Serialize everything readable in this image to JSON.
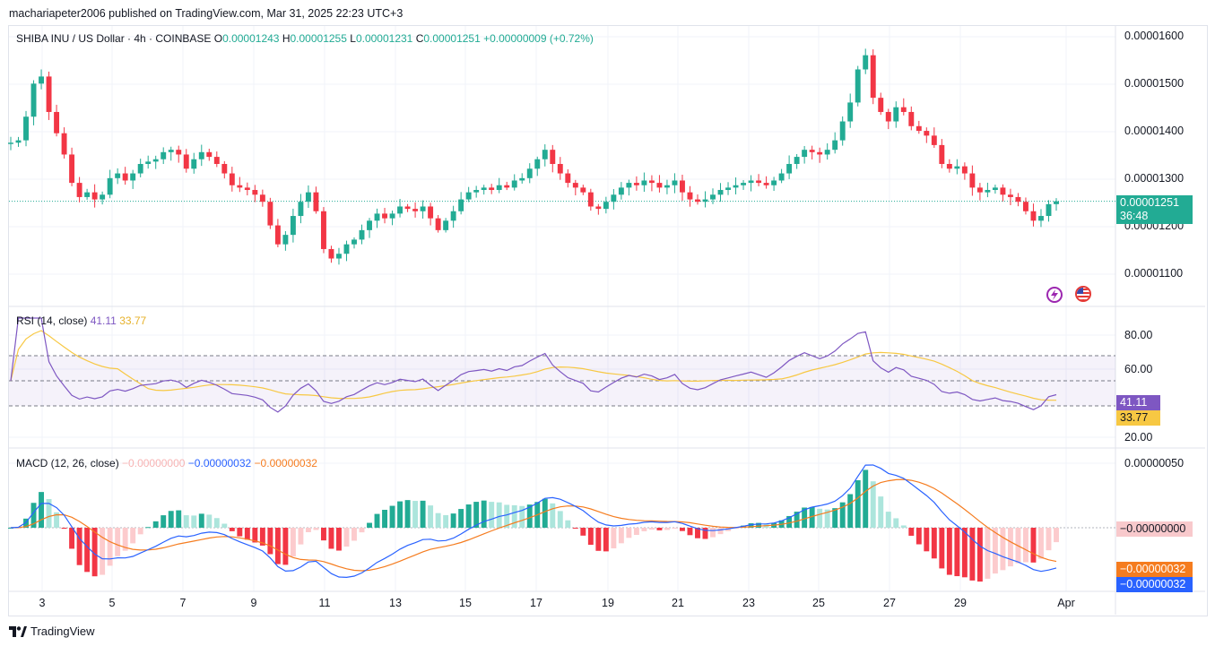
{
  "header": {
    "published": "machariapeter2006 published on TradingView.com, Mar 31, 2025 22:23 UTC+3"
  },
  "main_label": {
    "symbol": "SHIBA INU / US Dollar · 4h · COINBASE",
    "o_label": "O",
    "o": "0.00001243",
    "h_label": "H",
    "h": "0.00001255",
    "l_label": "L",
    "l": "0.00001231",
    "c_label": "C",
    "c": "0.00001251",
    "change": "+0.00000009 (+0.72%)"
  },
  "rsi_label": {
    "name": "RSI (14, close)",
    "rsi": "41.11",
    "ma": "33.77"
  },
  "macd_label": {
    "name": "MACD (12, 26, close)",
    "hist": "−0.00000000",
    "macd": "−0.00000032",
    "signal": "−0.00000032"
  },
  "price_axis": [
    "0.00001600",
    "0.00001500",
    "0.00001400",
    "0.00001300",
    "0.00001200",
    "0.00001100"
  ],
  "price_badge": {
    "value": "0.00001251",
    "countdown": "36:48"
  },
  "rsi_axis": [
    "80.00",
    "60.00",
    "20.00"
  ],
  "rsi_badges": {
    "rsi": "41.11",
    "ma": "33.77"
  },
  "macd_axis": [
    "0.00000050"
  ],
  "macd_badges": {
    "hist": "−0.00000000",
    "signal": "−0.00000032",
    "macd": "−0.00000032"
  },
  "x_axis": [
    "3",
    "5",
    "7",
    "9",
    "11",
    "13",
    "15",
    "17",
    "19",
    "21",
    "23",
    "25",
    "27",
    "29",
    "Apr"
  ],
  "footer": {
    "brand": "TradingView"
  },
  "colors": {
    "up": "#22ab94",
    "down": "#f23645",
    "rsi": "#7e57c2",
    "rsi_ma": "#f7c843",
    "macd": "#2962ff",
    "signal": "#f57c1f"
  },
  "chart_data": {
    "type": "candlestick",
    "title": "SHIBA INU / US Dollar · 4h · COINBASE",
    "price_range": [
      1.04e-05,
      1.62e-05
    ],
    "closes": [
      1.375e-05,
      1.38e-05,
      1.43e-05,
      1.5e-05,
      1.515e-05,
      1.44e-05,
      1.395e-05,
      1.35e-05,
      1.29e-05,
      1.26e-05,
      1.27e-05,
      1.255e-05,
      1.265e-05,
      1.3e-05,
      1.31e-05,
      1.295e-05,
      1.31e-05,
      1.33e-05,
      1.335e-05,
      1.34e-05,
      1.355e-05,
      1.36e-05,
      1.35e-05,
      1.32e-05,
      1.34e-05,
      1.355e-05,
      1.345e-05,
      1.33e-05,
      1.31e-05,
      1.285e-05,
      1.28e-05,
      1.275e-05,
      1.265e-05,
      1.25e-05,
      1.2e-05,
      1.16e-05,
      1.18e-05,
      1.22e-05,
      1.25e-05,
      1.27e-05,
      1.23e-05,
      1.15e-05,
      1.13e-05,
      1.14e-05,
      1.16e-05,
      1.17e-05,
      1.19e-05,
      1.21e-05,
      1.225e-05,
      1.215e-05,
      1.225e-05,
      1.24e-05,
      1.235e-05,
      1.23e-05,
      1.24e-05,
      1.215e-05,
      1.19e-05,
      1.21e-05,
      1.23e-05,
      1.255e-05,
      1.27e-05,
      1.275e-05,
      1.28e-05,
      1.275e-05,
      1.285e-05,
      1.28e-05,
      1.295e-05,
      1.3e-05,
      1.32e-05,
      1.34e-05,
      1.36e-05,
      1.33e-05,
      1.31e-05,
      1.29e-05,
      1.28e-05,
      1.27e-05,
      1.24e-05,
      1.235e-05,
      1.25e-05,
      1.265e-05,
      1.28e-05,
      1.29e-05,
      1.285e-05,
      1.295e-05,
      1.29e-05,
      1.28e-05,
      1.285e-05,
      1.295e-05,
      1.27e-05,
      1.255e-05,
      1.25e-05,
      1.255e-05,
      1.265e-05,
      1.275e-05,
      1.28e-05,
      1.285e-05,
      1.29e-05,
      1.295e-05,
      1.29e-05,
      1.285e-05,
      1.295e-05,
      1.31e-05,
      1.33e-05,
      1.345e-05,
      1.36e-05,
      1.355e-05,
      1.35e-05,
      1.36e-05,
      1.38e-05,
      1.42e-05,
      1.46e-05,
      1.53e-05,
      1.56e-05,
      1.47e-05,
      1.44e-05,
      1.42e-05,
      1.45e-05,
      1.44e-05,
      1.41e-05,
      1.4e-05,
      1.39e-05,
      1.37e-05,
      1.33e-05,
      1.32e-05,
      1.325e-05,
      1.31e-05,
      1.28e-05,
      1.27e-05,
      1.275e-05,
      1.28e-05,
      1.265e-05,
      1.26e-05,
      1.25e-05,
      1.23e-05,
      1.21e-05,
      1.22e-05,
      1.245e-05,
      1.251e-05
    ],
    "rsi": {
      "name": "RSI (14, close)",
      "range": [
        0,
        100
      ],
      "bands": [
        70,
        50,
        30
      ],
      "last": 41.11,
      "ma_last": 33.77
    },
    "macd": {
      "name": "MACD (12, 26, close)",
      "macd_last": -3.2e-07,
      "signal_last": -3.2e-07,
      "hist_last": -0.0,
      "top_tick": 5e-07
    },
    "x_labels": [
      "3",
      "5",
      "7",
      "9",
      "11",
      "13",
      "15",
      "17",
      "19",
      "21",
      "23",
      "25",
      "27",
      "29",
      "Apr"
    ]
  }
}
